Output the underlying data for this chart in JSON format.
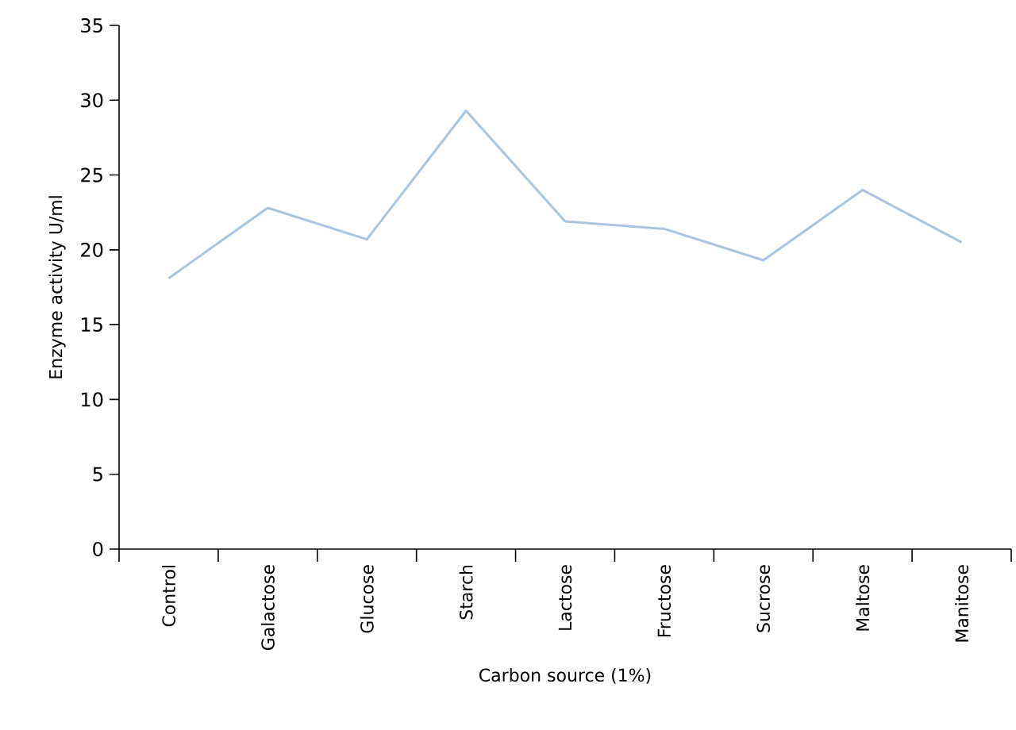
{
  "chart_data": {
    "type": "line",
    "xlabel": "Carbon source (1%)",
    "ylabel": "Enzyme activity U/ml",
    "categories": [
      "Control",
      "Galactose",
      "Glucose",
      "Starch",
      "Lactose",
      "Fructose",
      "Sucrose",
      "Maltose",
      "Manitose"
    ],
    "values": [
      18.1,
      22.8,
      20.7,
      29.3,
      21.9,
      21.4,
      19.3,
      24.0,
      20.5
    ],
    "color": "#a8c6e2",
    "ylim": [
      0,
      35
    ],
    "yticks": [
      0,
      5,
      10,
      15,
      20,
      25,
      30,
      35
    ],
    "grid": false,
    "marker": "none",
    "line_style": "solid"
  }
}
